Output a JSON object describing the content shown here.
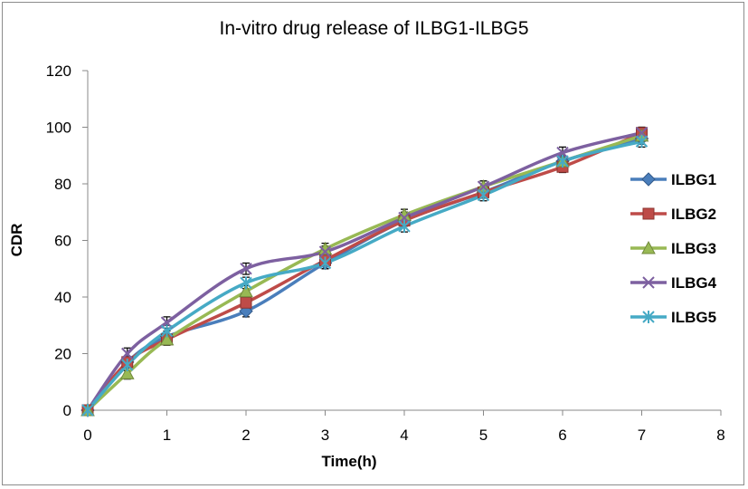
{
  "chart_data": {
    "type": "line",
    "title": "In-vitro drug release of ILBG1-ILBG5",
    "xlabel": "Time(h)",
    "ylabel": "CDR",
    "xlim": [
      0,
      8
    ],
    "ylim": [
      0,
      120
    ],
    "x_ticks": [
      "0",
      "1",
      "2",
      "3",
      "4",
      "5",
      "6",
      "7",
      "8"
    ],
    "y_ticks": [
      "0",
      "20",
      "40",
      "60",
      "80",
      "100",
      "120"
    ],
    "grid": false,
    "legend_position": "right",
    "x": [
      0,
      0.5,
      1,
      2,
      3,
      4,
      5,
      6,
      7
    ],
    "series": [
      {
        "name": "ILBG1",
        "color": "#4a7ebb",
        "marker": "diamond",
        "values": [
          0,
          17,
          26,
          35,
          52,
          67,
          77,
          88,
          96
        ],
        "error": [
          0,
          2,
          2,
          2,
          2,
          2,
          2,
          2,
          2
        ]
      },
      {
        "name": "ILBG2",
        "color": "#be4b48",
        "marker": "square",
        "values": [
          0,
          17,
          25,
          38,
          53,
          67,
          77,
          86,
          98
        ],
        "error": [
          0,
          2,
          2,
          2,
          2,
          2,
          2,
          2,
          2
        ]
      },
      {
        "name": "ILBG3",
        "color": "#98b954",
        "marker": "triangle",
        "values": [
          0,
          13,
          25,
          42,
          57,
          69,
          79,
          88,
          97
        ],
        "error": [
          0,
          2,
          2,
          2,
          2,
          2,
          2,
          2,
          2
        ]
      },
      {
        "name": "ILBG4",
        "color": "#7d60a0",
        "marker": "x",
        "values": [
          0,
          20,
          31,
          50,
          56,
          68,
          79,
          91,
          98
        ],
        "error": [
          0,
          2,
          2,
          2,
          2,
          2,
          2,
          2,
          2
        ]
      },
      {
        "name": "ILBG5",
        "color": "#46aac5",
        "marker": "star",
        "values": [
          0,
          16,
          28,
          45,
          52,
          65,
          76,
          88,
          95
        ],
        "error": [
          0,
          2,
          2,
          2,
          2,
          2,
          2,
          2,
          2
        ]
      }
    ]
  }
}
